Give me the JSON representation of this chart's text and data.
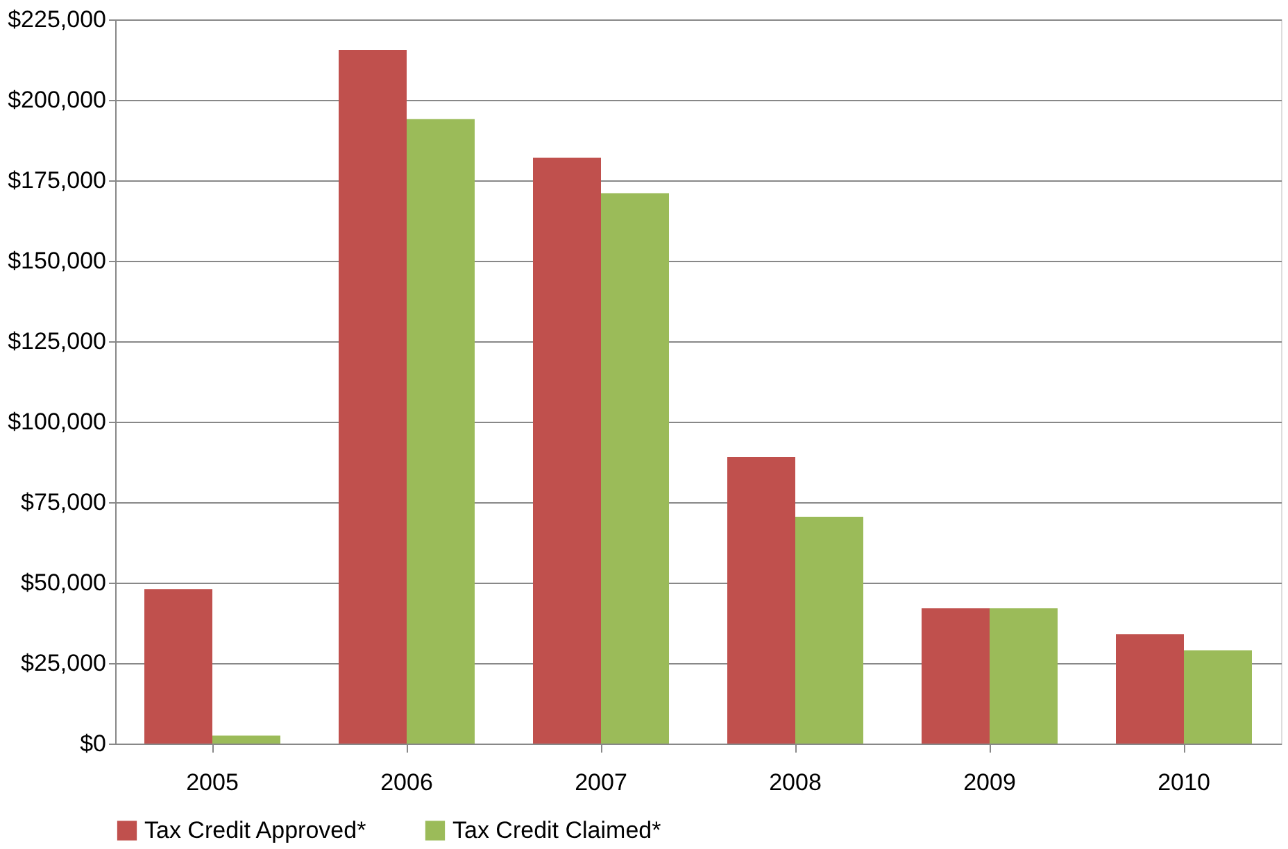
{
  "chart_data": {
    "type": "bar",
    "categories": [
      "2005",
      "2006",
      "2007",
      "2008",
      "2009",
      "2010"
    ],
    "series": [
      {
        "name": "Tax Credit Approved*",
        "color": "#c0504d",
        "values": [
          48000,
          215500,
          182000,
          89000,
          42000,
          34000
        ]
      },
      {
        "name": "Tax Credit Claimed*",
        "color": "#9bbb59",
        "values": [
          2500,
          194000,
          171000,
          70500,
          42000,
          29000
        ]
      }
    ],
    "ylim": [
      0,
      225000
    ],
    "yticks": [
      {
        "value": 0,
        "label": "$0"
      },
      {
        "value": 25000,
        "label": "$25,000"
      },
      {
        "value": 50000,
        "label": "$50,000"
      },
      {
        "value": 75000,
        "label": "$75,000"
      },
      {
        "value": 100000,
        "label": "$100,000"
      },
      {
        "value": 125000,
        "label": "$125,000"
      },
      {
        "value": 150000,
        "label": "$150,000"
      },
      {
        "value": 175000,
        "label": "$175,000"
      },
      {
        "value": 200000,
        "label": "$200,000"
      },
      {
        "value": 225000,
        "label": "$225,000"
      }
    ],
    "grid": "y",
    "legend": "bottom"
  }
}
